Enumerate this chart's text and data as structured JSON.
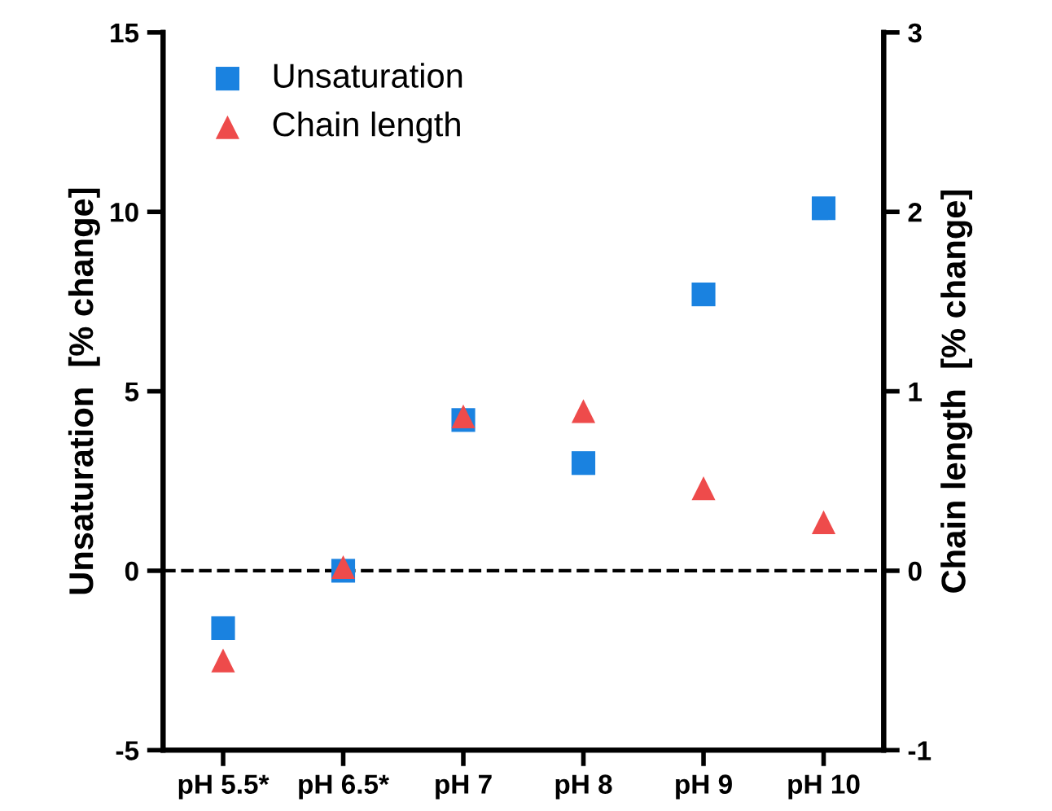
{
  "chart_data": {
    "type": "scatter",
    "ylabel": "Unsaturation  [% change]",
    "y2label": "Chain length  [% change]",
    "categories": [
      "pH 5.5*",
      "pH 6.5*",
      "pH 7",
      "pH 8",
      "pH 9",
      "pH 10"
    ],
    "series": [
      {
        "name": "Unsaturation",
        "color": "#1a82e0",
        "marker": "square",
        "values": [
          -1.6,
          0.0,
          4.2,
          3.0,
          7.7,
          10.1
        ]
      },
      {
        "name": "Chain length",
        "color": "#ee4b4b",
        "marker": "triangle",
        "axis": "y2",
        "values": [
          -0.5,
          0.02,
          0.86,
          0.89,
          0.46,
          0.27
        ]
      }
    ],
    "ylim": [
      -5,
      15
    ],
    "yticks": [
      -5,
      0,
      5,
      10,
      15
    ],
    "y2lim": [
      -1,
      3
    ],
    "y2ticks": [
      -1,
      0,
      1,
      2,
      3
    ],
    "ref_lines": [
      {
        "axis": "y",
        "value": 0,
        "color": "#000000",
        "line_style": "dashed"
      }
    ],
    "legend": "top left",
    "grid": false
  }
}
